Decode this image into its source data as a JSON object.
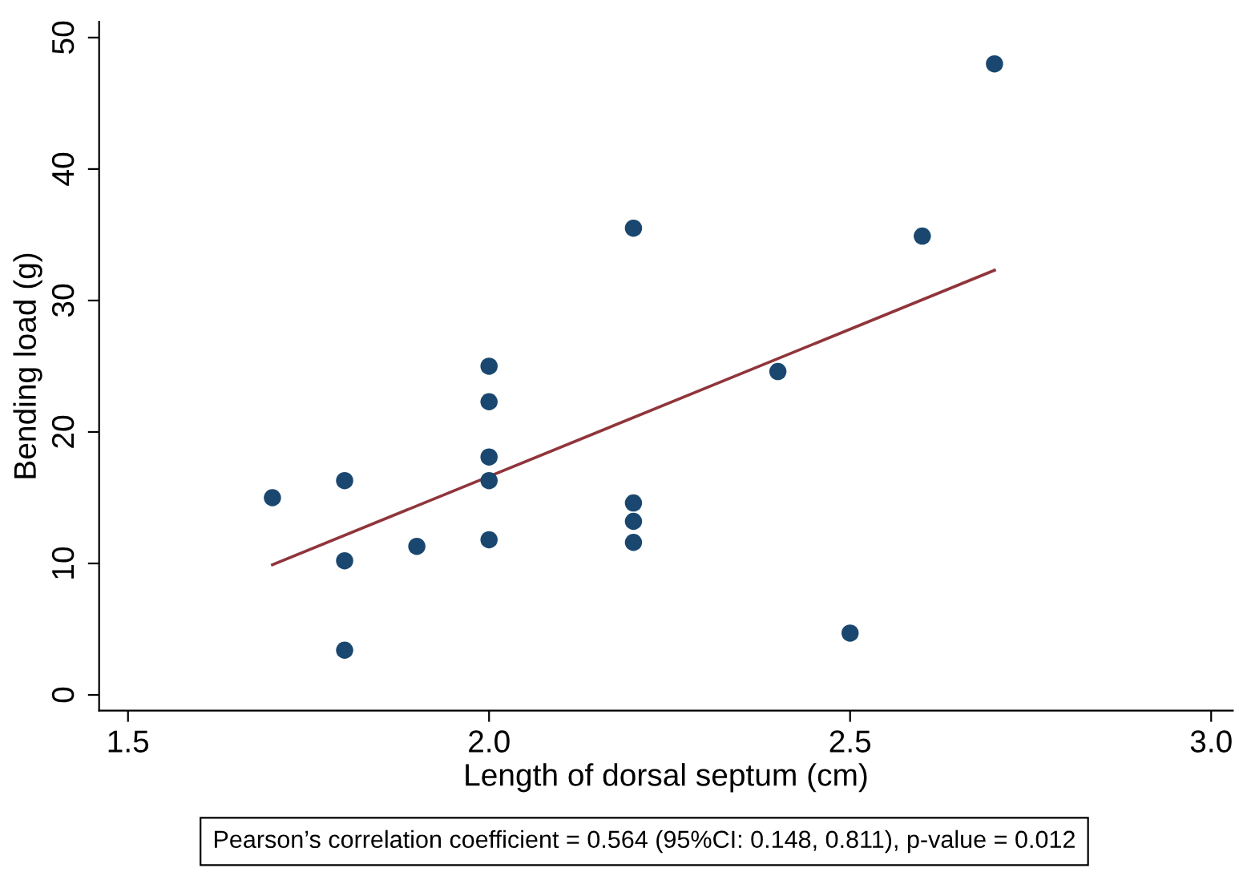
{
  "chart_data": {
    "type": "scatter",
    "xlabel": "Length of dorsal septum (cm)",
    "ylabel": "Bending load (g)",
    "annotations": [
      "Pearson’s correlation coefficient = 0.564 (95%CI: 0.148, 0.811), p-value = 0.012"
    ],
    "series": [
      {
        "marker": "circle",
        "color": "#1a476f",
        "x": [
          1.7,
          1.8,
          1.8,
          1.8,
          1.9,
          2.0,
          2.0,
          2.0,
          2.0,
          2.0,
          2.2,
          2.2,
          2.2,
          2.2,
          2.4,
          2.5,
          2.6,
          2.7
        ],
        "values": [
          15.0,
          16.3,
          10.2,
          3.4,
          11.3,
          25.0,
          22.3,
          18.1,
          16.3,
          11.8,
          35.5,
          14.6,
          13.2,
          11.6,
          24.6,
          4.7,
          34.9,
          48.0
        ]
      },
      {
        "type": "line",
        "color": "#90353b",
        "x": [
          1.7,
          2.7
        ],
        "values": [
          9.9,
          32.3
        ]
      }
    ],
    "xlim": [
      1.46,
      3.03
    ],
    "ylim": [
      -1.2,
      51.2
    ],
    "xticks": [
      {
        "value": 1.5,
        "label": "1.5"
      },
      {
        "value": 2.0,
        "label": "2.0"
      },
      {
        "value": 2.5,
        "label": "2.5"
      },
      {
        "value": 3.0,
        "label": "3.0"
      }
    ],
    "yticks": [
      0,
      10,
      20,
      30,
      40,
      50
    ],
    "grid": false,
    "legend": false
  }
}
